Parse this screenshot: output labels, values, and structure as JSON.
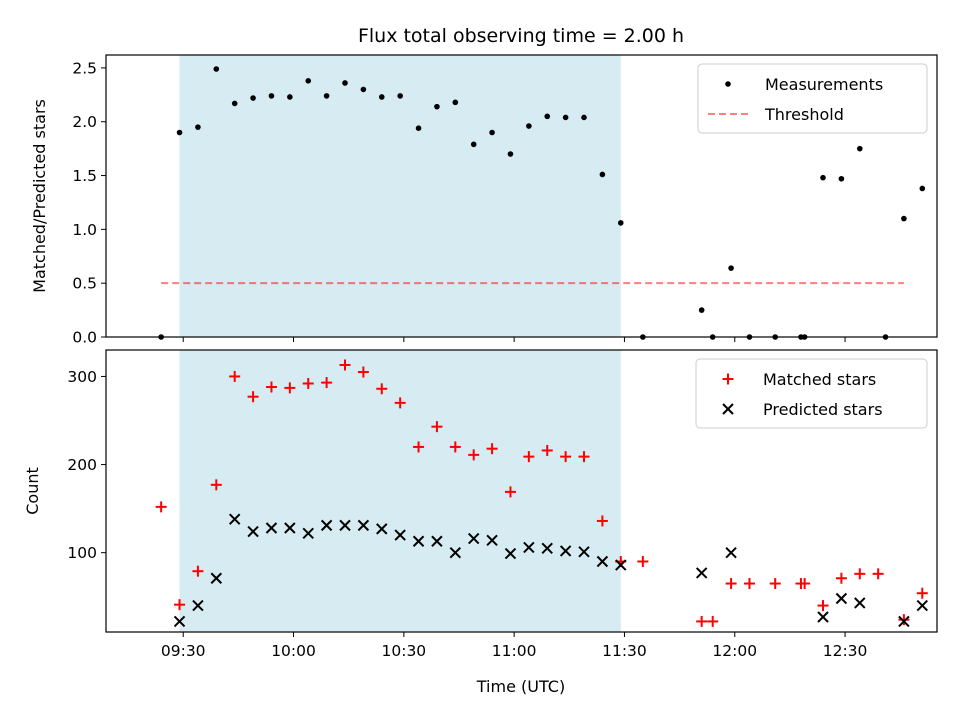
{
  "figure": {
    "title": "Flux total observing time = 2.00 h"
  },
  "chart_data": [
    {
      "type": "scatter",
      "ylabel": "Matched/Predicted stars",
      "xlim": [
        "09:09",
        "12:55"
      ],
      "ylim": [
        0,
        2.62
      ],
      "yticks": [
        "0.0",
        "0.5",
        "1.0",
        "1.5",
        "2.0",
        "2.5"
      ],
      "highlight_span": [
        "09:29",
        "11:29"
      ],
      "highlight_color": "#add8e6",
      "legend_placement": "top-right",
      "threshold": {
        "name": "Threshold",
        "y": 0.5,
        "x_range": [
          "09:24",
          "12:46"
        ],
        "color": "#ff0000"
      },
      "series": [
        {
          "name": "Measurements",
          "color": "#000000",
          "marker": "dot",
          "x": [
            "09:24",
            "09:29",
            "09:34",
            "09:39",
            "09:44",
            "09:49",
            "09:54",
            "09:59",
            "10:04",
            "10:09",
            "10:14",
            "10:19",
            "10:24",
            "10:29",
            "10:34",
            "10:39",
            "10:44",
            "10:49",
            "10:54",
            "10:59",
            "11:04",
            "11:09",
            "11:14",
            "11:19",
            "11:24",
            "11:29",
            "11:35",
            "11:51",
            "11:54",
            "11:59",
            "12:04",
            "12:11",
            "12:18",
            "12:19",
            "12:24",
            "12:29",
            "12:34",
            "12:41",
            "12:46",
            "12:51"
          ],
          "y": [
            0.0,
            1.9,
            1.95,
            2.49,
            2.17,
            2.22,
            2.24,
            2.23,
            2.38,
            2.24,
            2.36,
            2.3,
            2.23,
            2.24,
            1.94,
            2.14,
            2.18,
            1.79,
            1.9,
            1.7,
            1.96,
            2.05,
            2.04,
            2.04,
            1.51,
            1.06,
            0.0,
            0.25,
            0.0,
            0.64,
            0.0,
            0.0,
            0.0,
            0.0,
            1.48,
            1.47,
            1.75,
            0.0,
            1.1,
            1.38
          ]
        }
      ]
    },
    {
      "type": "scatter",
      "xlabel": "Time (UTC)",
      "ylabel": "Count",
      "xlim": [
        "09:09",
        "12:55"
      ],
      "ylim": [
        10,
        330
      ],
      "xticks": [
        "09:30",
        "10:00",
        "10:30",
        "11:00",
        "11:30",
        "12:00",
        "12:30"
      ],
      "yticks": [
        "100",
        "200",
        "300"
      ],
      "highlight_span": [
        "09:29",
        "11:29"
      ],
      "highlight_color": "#add8e6",
      "legend_placement": "top-right",
      "series": [
        {
          "name": "Matched stars",
          "color": "#ff0000",
          "marker": "plus",
          "x": [
            "09:24",
            "09:29",
            "09:34",
            "09:39",
            "09:44",
            "09:49",
            "09:54",
            "09:59",
            "10:04",
            "10:09",
            "10:14",
            "10:19",
            "10:24",
            "10:29",
            "10:34",
            "10:39",
            "10:44",
            "10:49",
            "10:54",
            "10:59",
            "11:04",
            "11:09",
            "11:14",
            "11:19",
            "11:24",
            "11:29",
            "11:35",
            "11:51",
            "11:54",
            "11:59",
            "12:04",
            "12:11",
            "12:18",
            "12:19",
            "12:24",
            "12:29",
            "12:34",
            "12:39",
            "12:46",
            "12:51"
          ],
          "y": [
            152,
            41,
            79,
            177,
            300,
            277,
            288,
            287,
            292,
            293,
            313,
            305,
            286,
            270,
            220,
            243,
            220,
            211,
            218,
            169,
            209,
            216,
            209,
            209,
            136,
            90,
            90,
            22,
            22,
            65,
            65,
            65,
            65,
            65,
            40,
            71,
            76,
            76,
            24,
            54
          ]
        },
        {
          "name": "Predicted stars",
          "color": "#000000",
          "marker": "x",
          "x": [
            "09:29",
            "09:34",
            "09:39",
            "09:44",
            "09:49",
            "09:54",
            "09:59",
            "10:04",
            "10:09",
            "10:14",
            "10:19",
            "10:24",
            "10:29",
            "10:34",
            "10:39",
            "10:44",
            "10:49",
            "10:54",
            "10:59",
            "11:04",
            "11:09",
            "11:14",
            "11:19",
            "11:24",
            "11:29",
            "11:51",
            "11:59",
            "12:24",
            "12:29",
            "12:34",
            "12:46",
            "12:51"
          ],
          "y": [
            22,
            40,
            71,
            138,
            124,
            128,
            128,
            122,
            131,
            131,
            131,
            127,
            120,
            113,
            113,
            100,
            116,
            114,
            99,
            106,
            105,
            102,
            101,
            90,
            86,
            77,
            100,
            27,
            48,
            43,
            22,
            40
          ]
        }
      ]
    }
  ]
}
